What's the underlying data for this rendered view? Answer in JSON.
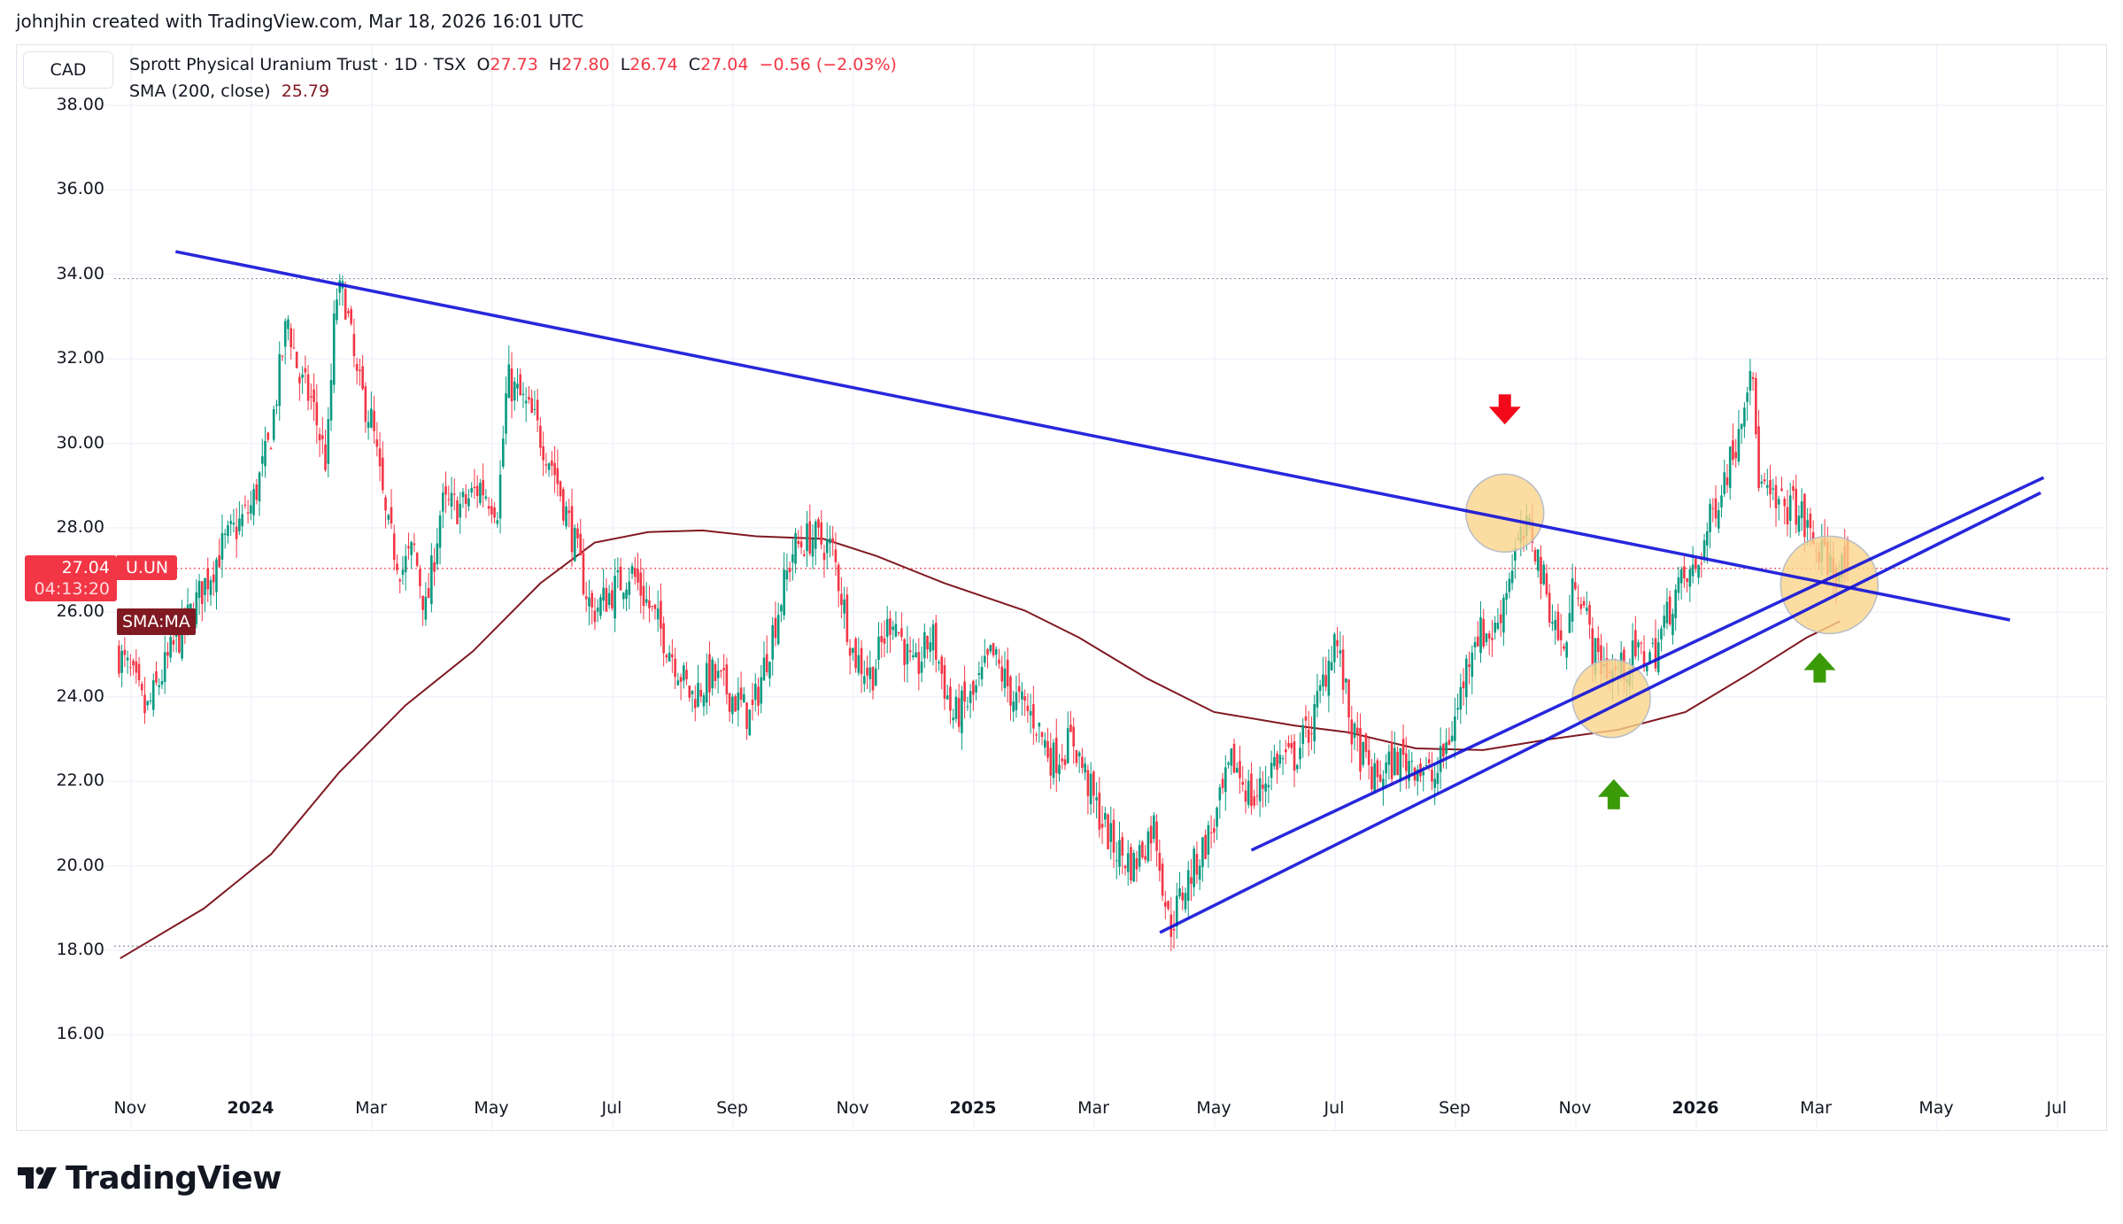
{
  "header": {
    "credit": "johnjhin created with TradingView.com, Mar 18, 2026 16:01 UTC"
  },
  "currency": "CAD",
  "legend": {
    "title": "Sprott Physical Uranium Trust · 1D · TSX",
    "o_label": "O",
    "o": "27.73",
    "h_label": "H",
    "h": "27.80",
    "l_label": "L",
    "l": "26.74",
    "c_label": "C",
    "c": "27.04",
    "change": "−0.56 (−2.03%)",
    "sma_label": "SMA (200, close)",
    "sma_value": "25.79"
  },
  "price_tag": {
    "price": "27.04",
    "countdown": "04:13:20",
    "symbol": "U.UN",
    "sma_tag": "SMA:MA"
  },
  "footer": {
    "brand": "TradingView"
  },
  "colors": {
    "up": "#089981",
    "down": "#f23645",
    "sma": "#801922",
    "trendline": "#1010d8",
    "highlight": "#fbd58a",
    "arrow_down": "#f20a1a",
    "arrow_up": "#3a9a08"
  },
  "chart_data": {
    "type": "candlestick",
    "title": "Sprott Physical Uranium Trust · 1D · TSX",
    "ylabel": "CAD",
    "ylim": [
      14.8,
      38.8
    ],
    "yticks": [
      "16.00",
      "18.00",
      "20.00",
      "22.00",
      "24.00",
      "26.00",
      "28.00",
      "30.00",
      "32.00",
      "34.00",
      "36.00",
      "38.00"
    ],
    "x_unit": "months since Nov 2023",
    "xticks": [
      {
        "m": 0,
        "label": "Nov"
      },
      {
        "m": 2,
        "label": "2024",
        "year": true
      },
      {
        "m": 4,
        "label": "Mar"
      },
      {
        "m": 6,
        "label": "May"
      },
      {
        "m": 8,
        "label": "Jul"
      },
      {
        "m": 10,
        "label": "Sep"
      },
      {
        "m": 12,
        "label": "Nov"
      },
      {
        "m": 14,
        "label": "2025",
        "year": true
      },
      {
        "m": 16,
        "label": "Mar"
      },
      {
        "m": 18,
        "label": "May"
      },
      {
        "m": 20,
        "label": "Jul"
      },
      {
        "m": 22,
        "label": "Sep"
      },
      {
        "m": 24,
        "label": "Nov"
      },
      {
        "m": 26,
        "label": "2026",
        "year": true
      },
      {
        "m": 28,
        "label": "Mar"
      },
      {
        "m": 30,
        "label": "May"
      },
      {
        "m": 32,
        "label": "Jul"
      }
    ],
    "close_path": [
      [
        -0.2,
        25.0
      ],
      [
        0.0,
        24.5
      ],
      [
        0.25,
        23.6
      ],
      [
        0.65,
        25.0
      ],
      [
        1.0,
        26.0
      ],
      [
        1.5,
        27.5
      ],
      [
        2.0,
        28.5
      ],
      [
        2.3,
        30.0
      ],
      [
        2.6,
        33.0
      ],
      [
        2.8,
        31.5
      ],
      [
        3.0,
        31.0
      ],
      [
        3.25,
        29.5
      ],
      [
        3.4,
        33.5
      ],
      [
        3.55,
        33.5
      ],
      [
        3.75,
        31.5
      ],
      [
        4.0,
        30.5
      ],
      [
        4.25,
        28.0
      ],
      [
        4.5,
        27.0
      ],
      [
        4.7,
        27.5
      ],
      [
        4.9,
        26.0
      ],
      [
        5.15,
        28.5
      ],
      [
        5.5,
        28.5
      ],
      [
        5.8,
        29.0
      ],
      [
        6.1,
        28.5
      ],
      [
        6.25,
        31.5
      ],
      [
        6.5,
        31.0
      ],
      [
        6.7,
        30.5
      ],
      [
        7.0,
        29.5
      ],
      [
        7.3,
        28.0
      ],
      [
        7.65,
        26.0
      ],
      [
        8.0,
        26.5
      ],
      [
        8.3,
        27.0
      ],
      [
        8.65,
        26.0
      ],
      [
        9.0,
        25.0
      ],
      [
        9.3,
        24.0
      ],
      [
        9.65,
        24.5
      ],
      [
        10.0,
        24.0
      ],
      [
        10.3,
        23.5
      ],
      [
        10.65,
        25.5
      ],
      [
        11.0,
        27.5
      ],
      [
        11.3,
        27.8
      ],
      [
        11.65,
        27.5
      ],
      [
        12.0,
        25.0
      ],
      [
        12.3,
        24.5
      ],
      [
        12.65,
        26.0
      ],
      [
        13.0,
        24.5
      ],
      [
        13.3,
        25.5
      ],
      [
        13.65,
        23.5
      ],
      [
        14.0,
        24.0
      ],
      [
        14.3,
        25.0
      ],
      [
        14.65,
        24.0
      ],
      [
        15.0,
        23.5
      ],
      [
        15.3,
        22.5
      ],
      [
        15.65,
        23.0
      ],
      [
        16.0,
        21.5
      ],
      [
        16.3,
        20.5
      ],
      [
        16.65,
        20.0
      ],
      [
        17.0,
        21.0
      ],
      [
        17.25,
        18.5
      ],
      [
        17.5,
        19.5
      ],
      [
        18.0,
        21.0
      ],
      [
        18.3,
        22.5
      ],
      [
        18.65,
        21.5
      ],
      [
        19.0,
        22.5
      ],
      [
        19.3,
        22.5
      ],
      [
        19.65,
        23.5
      ],
      [
        20.0,
        25.5
      ],
      [
        20.3,
        23.0
      ],
      [
        20.65,
        22.0
      ],
      [
        21.0,
        22.5
      ],
      [
        21.3,
        22.5
      ],
      [
        21.65,
        22.0
      ],
      [
        22.0,
        23.5
      ],
      [
        22.3,
        25.5
      ],
      [
        22.65,
        25.5
      ],
      [
        23.0,
        27.5
      ],
      [
        23.25,
        28.0
      ],
      [
        23.5,
        26.5
      ],
      [
        23.8,
        25.0
      ],
      [
        24.0,
        27.0
      ],
      [
        24.3,
        25.0
      ],
      [
        24.65,
        24.5
      ],
      [
        25.0,
        25.0
      ],
      [
        25.3,
        25.0
      ],
      [
        25.65,
        26.5
      ],
      [
        26.0,
        27.0
      ],
      [
        26.3,
        28.5
      ],
      [
        26.65,
        30.0
      ],
      [
        26.9,
        32.0
      ],
      [
        27.05,
        29.0
      ],
      [
        27.3,
        28.5
      ],
      [
        27.65,
        28.5
      ],
      [
        28.0,
        27.5
      ],
      [
        28.3,
        27.0
      ],
      [
        28.55,
        27.04
      ]
    ],
    "sma_200": [
      [
        -0.18,
        17.81
      ],
      [
        1.21,
        18.99
      ],
      [
        2.33,
        20.28
      ],
      [
        3.45,
        22.2
      ],
      [
        4.56,
        23.8
      ],
      [
        5.68,
        25.08
      ],
      [
        6.8,
        26.69
      ],
      [
        7.7,
        27.65
      ],
      [
        8.59,
        27.9
      ],
      [
        9.49,
        27.94
      ],
      [
        10.38,
        27.8
      ],
      [
        11.5,
        27.74
      ],
      [
        12.39,
        27.33
      ],
      [
        13.51,
        26.69
      ],
      [
        14.85,
        26.04
      ],
      [
        15.75,
        25.4
      ],
      [
        16.87,
        24.44
      ],
      [
        17.99,
        23.64
      ],
      [
        19.33,
        23.32
      ],
      [
        20.22,
        23.16
      ],
      [
        21.34,
        22.78
      ],
      [
        22.46,
        22.74
      ],
      [
        23.58,
        23.0
      ],
      [
        24.7,
        23.22
      ],
      [
        25.82,
        23.64
      ],
      [
        26.94,
        24.6
      ],
      [
        27.83,
        25.4
      ],
      [
        28.39,
        25.79
      ]
    ],
    "reference_lines": {
      "period_high": 33.9,
      "period_low": 18.1,
      "last_price": 27.04
    },
    "trendlines": [
      {
        "name": "resistance-downtrend",
        "from": [
          0.74,
          34.54
        ],
        "to": [
          31.21,
          25.82
        ]
      },
      {
        "name": "support-uptrend-1",
        "from": [
          17.09,
          18.42
        ],
        "to": [
          31.72,
          28.83
        ]
      },
      {
        "name": "support-uptrend-2",
        "from": [
          18.61,
          20.37
        ],
        "to": [
          31.77,
          29.19
        ]
      }
    ],
    "highlights": [
      [
        22.82,
        28.35
      ],
      [
        24.59,
        23.96
      ],
      [
        28.21,
        26.65
      ]
    ],
    "arrows": [
      {
        "dir": "down",
        "at": [
          22.82,
          30.7
        ]
      },
      {
        "dir": "up",
        "at": [
          24.63,
          21.8
        ]
      },
      {
        "dir": "up",
        "at": [
          28.05,
          24.8
        ]
      }
    ]
  }
}
